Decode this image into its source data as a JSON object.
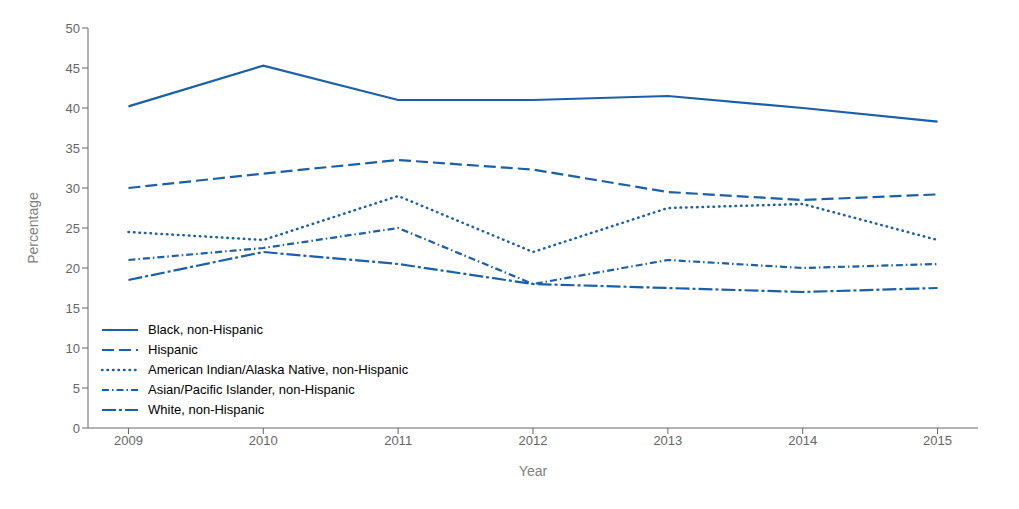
{
  "chart_data": {
    "type": "line",
    "xlabel": "Year",
    "ylabel": "Percentage",
    "color": "#1a5fa8",
    "x": [
      2009,
      2010,
      2011,
      2012,
      2013,
      2014,
      2015
    ],
    "xlim": [
      2008.7,
      2015.3
    ],
    "xticks": [
      2009,
      2010,
      2011,
      2012,
      2013,
      2014,
      2015
    ],
    "ylim": [
      0,
      50
    ],
    "yticks": [
      0,
      5,
      10,
      15,
      20,
      25,
      30,
      35,
      40,
      45,
      50
    ],
    "grid": false,
    "legend": "lower left",
    "series": [
      {
        "name": "Black, non-Hispanic",
        "values": [
          40.2,
          45.3,
          41.0,
          41.0,
          41.5,
          40.0,
          38.3
        ],
        "line_style": "solid"
      },
      {
        "name": "Hispanic",
        "values": [
          30.0,
          31.8,
          33.5,
          32.3,
          29.5,
          28.5,
          29.2
        ],
        "line_style": "dashed"
      },
      {
        "name": "American Indian/Alaska Native, non-Hispanic",
        "values": [
          24.5,
          23.5,
          29.0,
          22.0,
          27.5,
          28.0,
          23.5
        ],
        "line_style": "dotted"
      },
      {
        "name": "Asian/Pacific Islander, non-Hispanic",
        "values": [
          21.0,
          22.5,
          25.0,
          18.0,
          21.0,
          20.0,
          20.5
        ],
        "line_style": "dashdot"
      },
      {
        "name": "White, non-Hispanic",
        "values": [
          18.5,
          22.0,
          20.5,
          18.0,
          17.5,
          17.0,
          17.5
        ],
        "line_style": "longdashdot"
      }
    ]
  }
}
